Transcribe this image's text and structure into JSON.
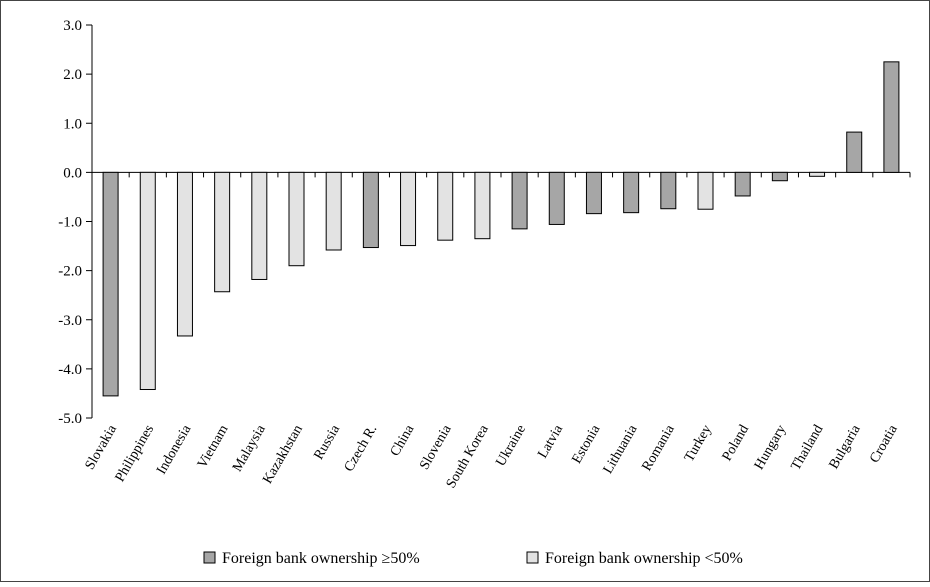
{
  "chart_data": {
    "type": "bar",
    "title": "",
    "xlabel": "",
    "ylabel": "",
    "ylim": [
      -5.0,
      3.0
    ],
    "yticks": [
      "3.0",
      "2.0",
      "1.0",
      "0.0",
      "-1.0",
      "-2.0",
      "-3.0",
      "-4.0",
      "-5.0"
    ],
    "grid": false,
    "legend_position": "bottom",
    "categories": [
      "Slovakia",
      "Philippines",
      "Indonesia",
      "Vietnam",
      "Malaysia",
      "Kazakhstan",
      "Russia",
      "Czech R.",
      "China",
      "Slovenia",
      "South Korea",
      "Ukraine",
      "Latvia",
      "Estonia",
      "Lithuania",
      "Romania",
      "Turkey",
      "Poland",
      "Hungary",
      "Thailand",
      "Bulgaria",
      "Croatia"
    ],
    "values": [
      -4.55,
      -4.42,
      -3.33,
      -2.43,
      -2.18,
      -1.9,
      -1.58,
      -1.53,
      -1.49,
      -1.38,
      -1.35,
      -1.15,
      -1.06,
      -0.84,
      -0.82,
      -0.74,
      -0.75,
      -0.48,
      -0.17,
      -0.08,
      0.82,
      2.25
    ],
    "groups": [
      "high",
      "low",
      "low",
      "low",
      "low",
      "low",
      "low",
      "high",
      "low",
      "low",
      "low",
      "high",
      "high",
      "high",
      "high",
      "high",
      "low",
      "high",
      "high",
      "low",
      "high",
      "high"
    ],
    "legend": [
      {
        "key": "high",
        "label": "Foreign bank ownership ≥50%",
        "color": "#a6a6a6"
      },
      {
        "key": "low",
        "label": "Foreign bank ownership <50%",
        "color": "#e3e3e3"
      }
    ]
  }
}
